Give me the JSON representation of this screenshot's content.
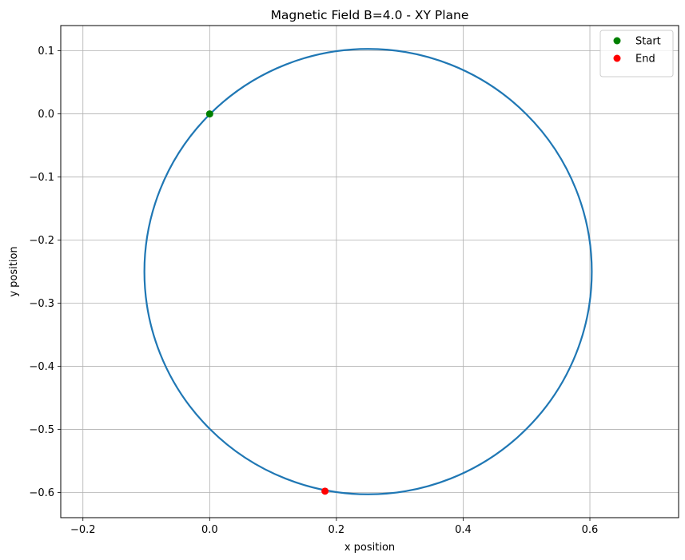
{
  "chart_data": {
    "type": "line",
    "title": "Magnetic Field B=4.0 - XY Plane",
    "xlabel": "x position",
    "ylabel": "y position",
    "xlim": [
      -0.235,
      0.74
    ],
    "ylim": [
      -0.64,
      0.14
    ],
    "xticks": [
      -0.2,
      0.0,
      0.2,
      0.4,
      0.6
    ],
    "yticks": [
      0.1,
      0.0,
      -0.1,
      -0.2,
      -0.3,
      -0.4,
      -0.5,
      -0.6
    ],
    "xtick_labels": [
      "−0.2",
      "0.0",
      "0.2",
      "0.4",
      "0.6"
    ],
    "ytick_labels": [
      "0.1",
      "0.0",
      "−0.1",
      "−0.2",
      "−0.3",
      "−0.4",
      "−0.5",
      "−0.6"
    ],
    "grid": true,
    "legend_position": "top-right",
    "series": [
      {
        "kind": "trajectory",
        "color": "#1f77b4",
        "shape": "circle",
        "center": [
          0.25,
          -0.25
        ],
        "radius": 0.353
      },
      {
        "name": "Start",
        "kind": "marker",
        "color": "#008000",
        "x": 0.0,
        "y": 0.0
      },
      {
        "name": "End",
        "kind": "marker",
        "color": "#ff0000",
        "x": 0.182,
        "y": -0.598
      }
    ]
  }
}
